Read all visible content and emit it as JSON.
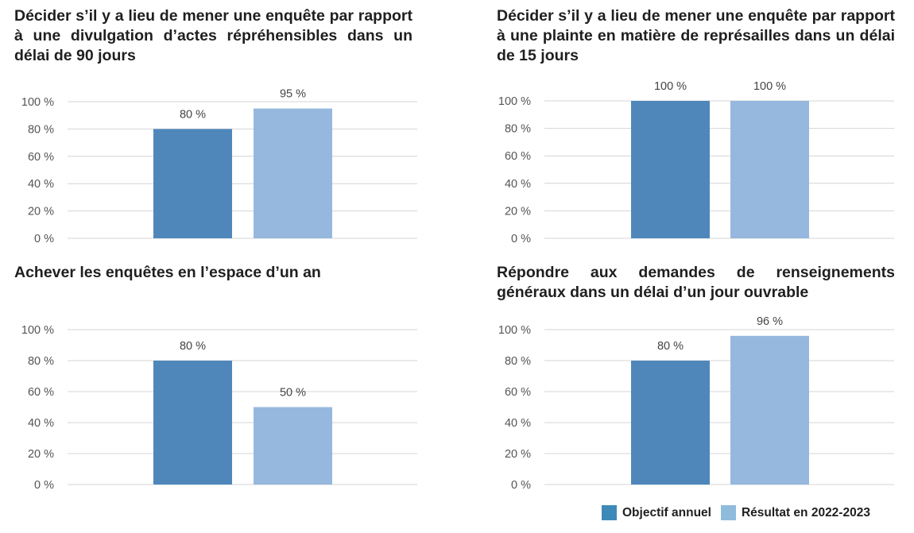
{
  "colors": {
    "objectif": "#4f87bb",
    "resultat": "#96b8de",
    "grid": "#d4d4d4"
  },
  "legend": [
    {
      "label": "Objectif annuel",
      "color": "#3d8ab9"
    },
    {
      "label": "Résultat en 2022-2023",
      "color": "#8fbcdd"
    }
  ],
  "chart_data": [
    {
      "type": "bar",
      "title": "Décider s’il y a lieu de mener une enquête par rapport à une divulgation d’actes répréhensibles dans un délai de 90 jours",
      "y_ticks": [
        "0 %",
        "20 %",
        "40 %",
        "60 %",
        "80 %",
        "100 %"
      ],
      "ylim": [
        0,
        100
      ],
      "grid": true,
      "series": [
        {
          "name": "Objectif annuel",
          "values": [
            80
          ],
          "labels": [
            "80 %"
          ]
        },
        {
          "name": "Résultat en 2022-2023",
          "values": [
            95
          ],
          "labels": [
            "95 %"
          ]
        }
      ]
    },
    {
      "type": "bar",
      "title": "Décider s’il y a lieu de mener une enquête par rapport à une plainte en matière de représailles dans un délai de 15 jours",
      "y_ticks": [
        "0 %",
        "20 %",
        "40 %",
        "60 %",
        "80 %",
        "100 %"
      ],
      "ylim": [
        0,
        100
      ],
      "grid": true,
      "series": [
        {
          "name": "Objectif annuel",
          "values": [
            100
          ],
          "labels": [
            "100 %"
          ]
        },
        {
          "name": "Résultat en 2022-2023",
          "values": [
            100
          ],
          "labels": [
            "100 %"
          ]
        }
      ]
    },
    {
      "type": "bar",
      "title": "Achever les enquêtes en l’espace d’un an",
      "y_ticks": [
        "0 %",
        "20 %",
        "40 %",
        "60 %",
        "80 %",
        "100 %"
      ],
      "ylim": [
        0,
        100
      ],
      "grid": true,
      "series": [
        {
          "name": "Objectif annuel",
          "values": [
            80
          ],
          "labels": [
            "80 %"
          ]
        },
        {
          "name": "Résultat en 2022-2023",
          "values": [
            50
          ],
          "labels": [
            "50 %"
          ]
        }
      ]
    },
    {
      "type": "bar",
      "title": "Répondre aux demandes de renseignements généraux  dans un délai d’un jour ouvrable",
      "y_ticks": [
        "0 %",
        "20 %",
        "40 %",
        "60 %",
        "80 %",
        "100 %"
      ],
      "ylim": [
        0,
        100
      ],
      "grid": true,
      "series": [
        {
          "name": "Objectif annuel",
          "values": [
            80
          ],
          "labels": [
            "80 %"
          ]
        },
        {
          "name": "Résultat en 2022-2023",
          "values": [
            96
          ],
          "labels": [
            "96 %"
          ]
        }
      ]
    }
  ]
}
